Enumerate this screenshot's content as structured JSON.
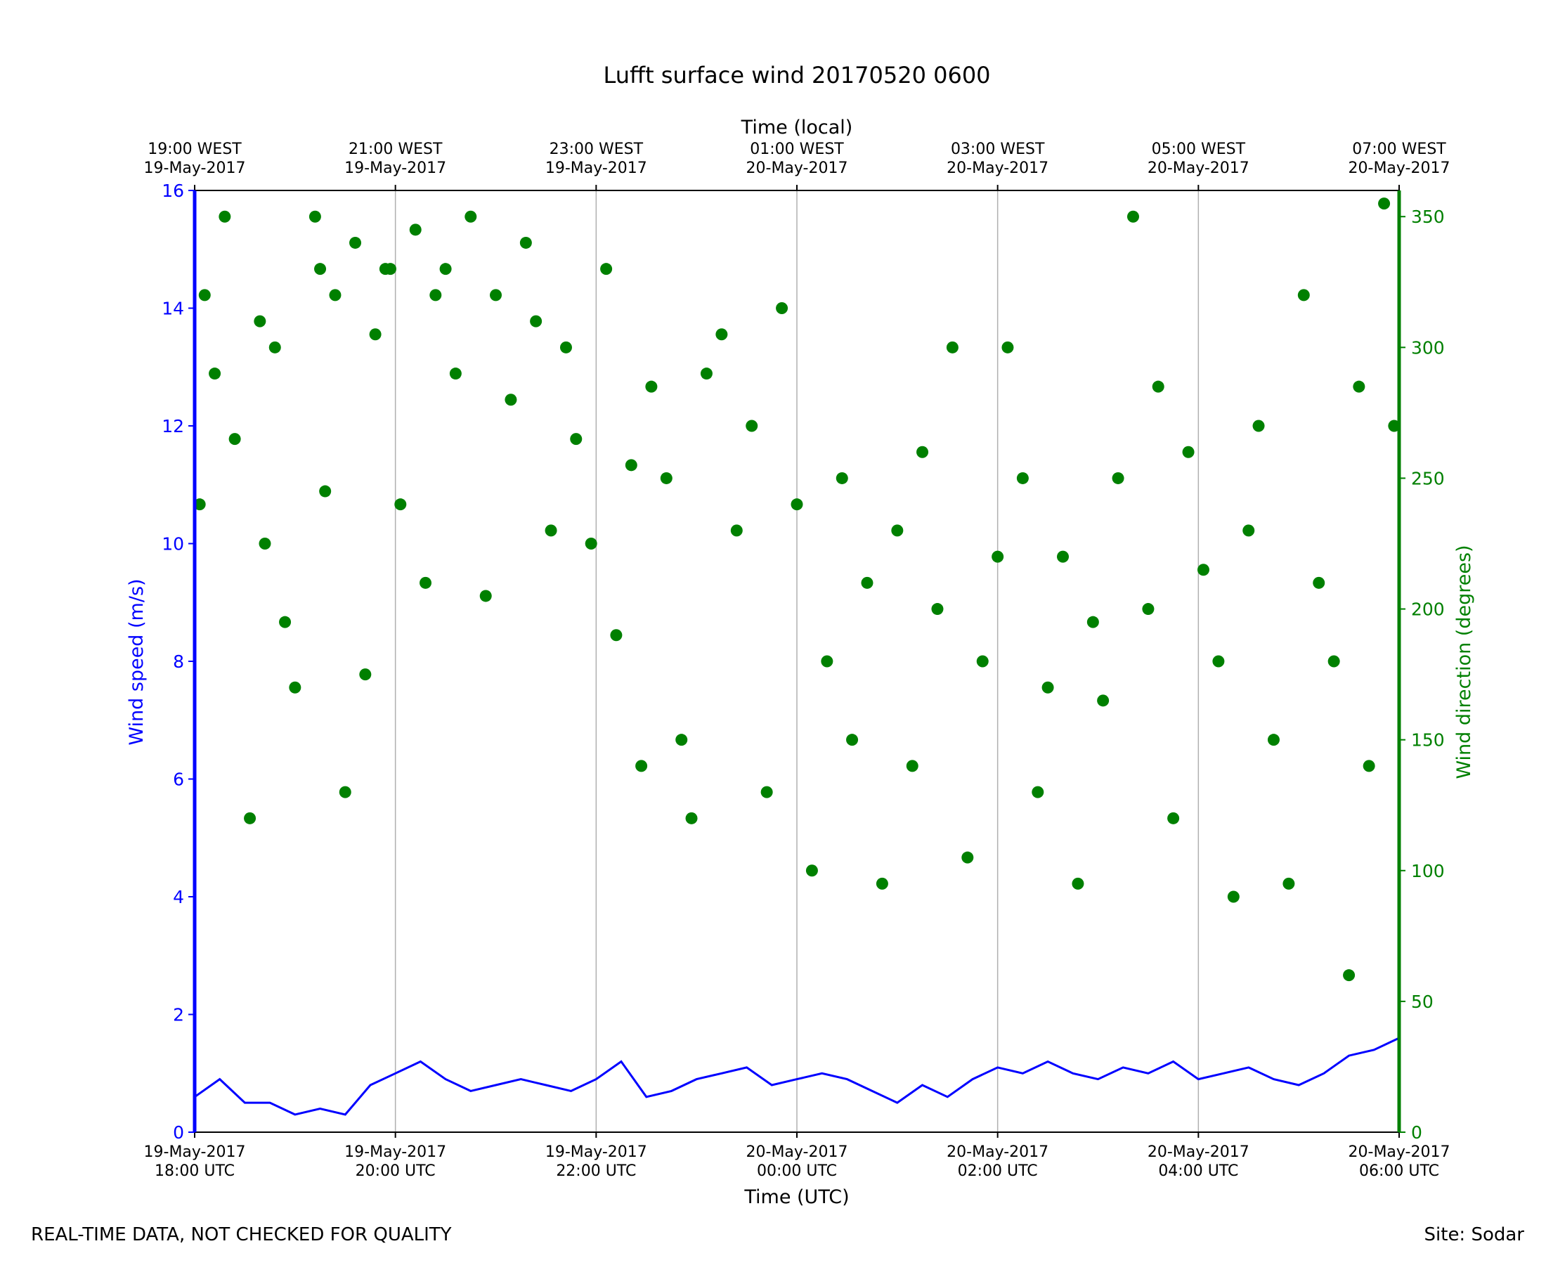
{
  "chart_data": {
    "type": "scatter",
    "title": "Lufft surface wind 20170520 0600",
    "xlabel": "Time (UTC)",
    "xlabel_top": "Time (local)",
    "ylabel": "Wind speed (m/s)",
    "ylabel_right": "Wind direction (degrees)",
    "xlim_hours_utc": [
      0,
      12
    ],
    "ylim": [
      0,
      16
    ],
    "ylim_right": [
      0,
      360
    ],
    "grid": "vertical lines at each 2-hour tick",
    "colors": {
      "speed": "#0000ff",
      "direction": "#008000",
      "grid": "#b0b0b0"
    },
    "x_ticks_bottom": [
      {
        "line1": "19-May-2017",
        "line2": "18:00 UTC"
      },
      {
        "line1": "19-May-2017",
        "line2": "20:00 UTC"
      },
      {
        "line1": "19-May-2017",
        "line2": "22:00 UTC"
      },
      {
        "line1": "20-May-2017",
        "line2": "00:00 UTC"
      },
      {
        "line1": "20-May-2017",
        "line2": "02:00 UTC"
      },
      {
        "line1": "20-May-2017",
        "line2": "04:00 UTC"
      },
      {
        "line1": "20-May-2017",
        "line2": "06:00 UTC"
      }
    ],
    "x_ticks_top": [
      {
        "line1": "19:00 WEST",
        "line2": "19-May-2017"
      },
      {
        "line1": "21:00 WEST",
        "line2": "19-May-2017"
      },
      {
        "line1": "23:00 WEST",
        "line2": "19-May-2017"
      },
      {
        "line1": "01:00 WEST",
        "line2": "20-May-2017"
      },
      {
        "line1": "03:00 WEST",
        "line2": "20-May-2017"
      },
      {
        "line1": "05:00 WEST",
        "line2": "20-May-2017"
      },
      {
        "line1": "07:00 WEST",
        "line2": "20-May-2017"
      }
    ],
    "y_ticks_left": [
      "0",
      "2",
      "4",
      "6",
      "8",
      "10",
      "12",
      "14",
      "16"
    ],
    "y_ticks_right": [
      "0",
      "50",
      "100",
      "150",
      "200",
      "250",
      "300",
      "350"
    ],
    "series": [
      {
        "kind": "line",
        "axis": "left",
        "x": [
          0.0,
          0.25,
          0.5,
          0.75,
          1.0,
          1.25,
          1.5,
          1.75,
          2.0,
          2.25,
          2.5,
          2.75,
          3.0,
          3.25,
          3.5,
          3.75,
          4.0,
          4.25,
          4.5,
          4.75,
          5.0,
          5.25,
          5.5,
          5.75,
          6.0,
          6.25,
          6.5,
          6.75,
          7.0,
          7.25,
          7.5,
          7.75,
          8.0,
          8.25,
          8.5,
          8.75,
          9.0,
          9.25,
          9.5,
          9.75,
          10.0,
          10.25,
          10.5,
          10.75,
          11.0,
          11.25,
          11.5,
          11.75,
          12.0
        ],
        "values": [
          0.6,
          0.9,
          0.5,
          0.5,
          0.3,
          0.4,
          0.3,
          0.8,
          1.0,
          1.2,
          0.9,
          0.7,
          0.8,
          0.9,
          0.8,
          0.7,
          0.9,
          1.2,
          0.6,
          0.7,
          0.9,
          1.0,
          1.1,
          0.8,
          0.9,
          1.0,
          0.9,
          0.7,
          0.5,
          0.8,
          0.6,
          0.9,
          1.1,
          1.0,
          1.2,
          1.0,
          0.9,
          1.1,
          1.0,
          1.2,
          0.9,
          1.0,
          1.1,
          0.9,
          0.8,
          1.0,
          1.3,
          1.4,
          1.6
        ]
      },
      {
        "kind": "scatter",
        "axis": "right",
        "x": [
          0.05,
          0.1,
          0.2,
          0.3,
          0.4,
          0.55,
          0.65,
          0.7,
          0.8,
          0.9,
          1.0,
          1.2,
          1.25,
          1.3,
          1.4,
          1.5,
          1.6,
          1.7,
          1.8,
          1.9,
          1.95,
          2.05,
          2.2,
          2.3,
          2.4,
          2.5,
          2.6,
          2.75,
          2.9,
          3.0,
          3.15,
          3.3,
          3.4,
          3.55,
          3.7,
          3.8,
          3.95,
          4.1,
          4.2,
          4.35,
          4.45,
          4.55,
          4.7,
          4.85,
          4.95,
          5.1,
          5.25,
          5.4,
          5.55,
          5.7,
          5.85,
          6.0,
          6.15,
          6.3,
          6.45,
          6.55,
          6.7,
          6.85,
          7.0,
          7.15,
          7.25,
          7.4,
          7.55,
          7.7,
          7.85,
          8.0,
          8.1,
          8.25,
          8.4,
          8.5,
          8.65,
          8.8,
          8.95,
          9.05,
          9.2,
          9.35,
          9.5,
          9.6,
          9.75,
          9.9,
          10.05,
          10.2,
          10.35,
          10.5,
          10.6,
          10.75,
          10.9,
          11.05,
          11.2,
          11.35,
          11.5,
          11.6,
          11.7,
          11.85,
          11.95
        ],
        "values": [
          240,
          320,
          290,
          350,
          265,
          120,
          310,
          225,
          300,
          195,
          170,
          350,
          330,
          245,
          320,
          130,
          340,
          175,
          305,
          330,
          330,
          240,
          345,
          210,
          320,
          330,
          290,
          350,
          205,
          320,
          280,
          340,
          310,
          230,
          300,
          265,
          225,
          330,
          190,
          255,
          140,
          285,
          250,
          150,
          120,
          290,
          305,
          230,
          270,
          130,
          315,
          240,
          100,
          180,
          250,
          150,
          210,
          95,
          230,
          140,
          260,
          200,
          300,
          105,
          180,
          220,
          300,
          250,
          130,
          170,
          220,
          95,
          195,
          165,
          250,
          350,
          200,
          285,
          120,
          260,
          215,
          180,
          90,
          230,
          270,
          150,
          95,
          320,
          210,
          180,
          60,
          285,
          140,
          355,
          270
        ]
      }
    ]
  },
  "footer": {
    "left": "REAL-TIME DATA, NOT CHECKED FOR QUALITY",
    "right": "Site: Sodar"
  }
}
